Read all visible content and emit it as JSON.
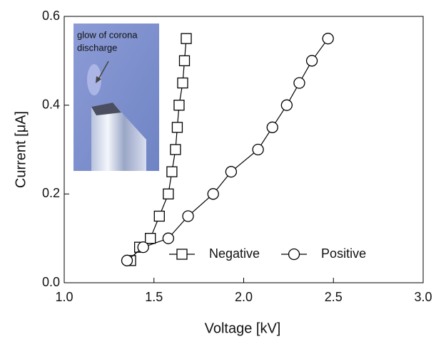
{
  "chart_data": {
    "type": "line",
    "x_label": "Voltage [kV]",
    "y_label": "Current [μA]",
    "annotation": [
      "glow of corona",
      "discharge"
    ],
    "xlim": [
      1.0,
      3.0
    ],
    "xticks": [
      {
        "value": 1.0,
        "label": "1.0"
      },
      {
        "value": 1.5,
        "label": "1.5"
      },
      {
        "value": 2.0,
        "label": "2.0"
      },
      {
        "value": 2.5,
        "label": "2.5"
      },
      {
        "value": 3.0,
        "label": "3.0"
      }
    ],
    "ylim": [
      0,
      0.6
    ],
    "yticks": [
      {
        "value": 0,
        "label": "0.0"
      },
      0.2,
      0.4,
      0.6
    ],
    "legend": "lower right",
    "series": [
      {
        "name": "Negative",
        "marker": "square",
        "color": "#000000",
        "x": [
          1.37,
          1.42,
          1.48,
          1.53,
          1.58,
          1.6,
          1.62,
          1.63,
          1.64,
          1.66,
          1.67,
          1.68
        ],
        "values": [
          0.05,
          0.08,
          0.1,
          0.15,
          0.2,
          0.25,
          0.3,
          0.35,
          0.4,
          0.45,
          0.5,
          0.55
        ]
      },
      {
        "name": "Positive",
        "marker": "circle",
        "color": "#000000",
        "x": [
          1.35,
          1.44,
          1.58,
          1.69,
          1.83,
          1.93,
          2.08,
          2.16,
          2.24,
          2.31,
          2.38,
          2.47
        ],
        "values": [
          0.05,
          0.08,
          0.1,
          0.15,
          0.2,
          0.25,
          0.3,
          0.35,
          0.4,
          0.45,
          0.5,
          0.55
        ]
      }
    ]
  }
}
